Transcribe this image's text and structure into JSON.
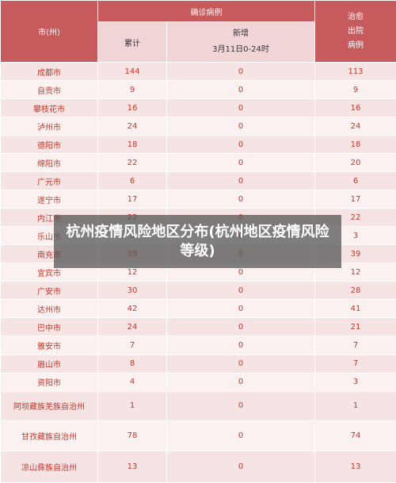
{
  "header": {
    "city_col": "市(州)",
    "confirmed_group": "确诊病例",
    "cumulative": "累计",
    "new_added": "新增",
    "new_added_period": "3月11日0-24时",
    "cured_line1": "治愈",
    "cured_line2": "出院",
    "cured_line3": "病例"
  },
  "rows": [
    {
      "city": "成都市",
      "cumulative": "144",
      "new": "0",
      "cured": "113"
    },
    {
      "city": "自贡市",
      "cumulative": "9",
      "new": "0",
      "cured": "9"
    },
    {
      "city": "攀枝花市",
      "cumulative": "16",
      "new": "0",
      "cured": "16"
    },
    {
      "city": "泸州市",
      "cumulative": "24",
      "new": "0",
      "cured": "24"
    },
    {
      "city": "德阳市",
      "cumulative": "18",
      "new": "0",
      "cured": "18"
    },
    {
      "city": "绵阳市",
      "cumulative": "22",
      "new": "0",
      "cured": "20"
    },
    {
      "city": "广元市",
      "cumulative": "6",
      "new": "0",
      "cured": "6"
    },
    {
      "city": "遂宁市",
      "cumulative": "17",
      "new": "0",
      "cured": "17"
    },
    {
      "city": "内江市",
      "cumulative": "22",
      "new": "0",
      "cured": "22"
    },
    {
      "city": "乐山市",
      "cumulative": "3",
      "new": "0",
      "cured": "3"
    },
    {
      "city": "南充市",
      "cumulative": "39",
      "new": "0",
      "cured": "39"
    },
    {
      "city": "宜宾市",
      "cumulative": "12",
      "new": "0",
      "cured": "12"
    },
    {
      "city": "广安市",
      "cumulative": "30",
      "new": "0",
      "cured": "28"
    },
    {
      "city": "达州市",
      "cumulative": "42",
      "new": "0",
      "cured": "41"
    },
    {
      "city": "巴中市",
      "cumulative": "24",
      "new": "0",
      "cured": "21"
    },
    {
      "city": "雅安市",
      "cumulative": "7",
      "new": "0",
      "cured": "7"
    },
    {
      "city": "眉山市",
      "cumulative": "8",
      "new": "0",
      "cured": "7"
    },
    {
      "city": "资阳市",
      "cumulative": "4",
      "new": "0",
      "cured": "3"
    },
    {
      "city": "阿坝藏族羌族自治州",
      "cumulative": "1",
      "new": "0",
      "cured": "1"
    },
    {
      "city": "甘孜藏族自治州",
      "cumulative": "78",
      "new": "0",
      "cured": "74"
    },
    {
      "city": "凉山彝族自治州",
      "cumulative": "13",
      "new": "0",
      "cured": "13"
    }
  ],
  "overlay_title": "杭州疫情风险地区分布(杭州地区疫情风险等级)"
}
